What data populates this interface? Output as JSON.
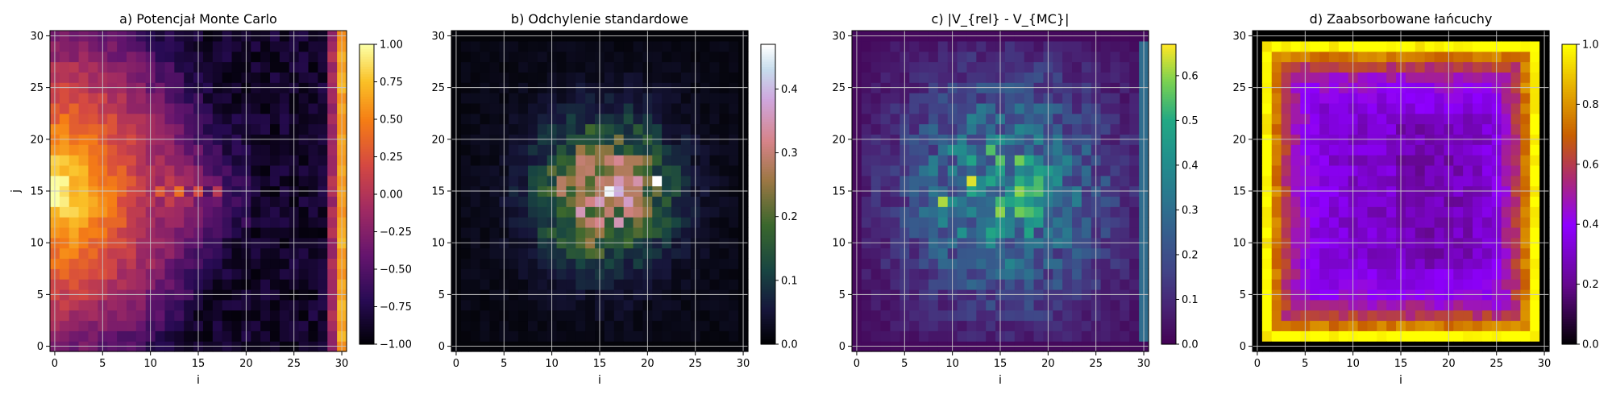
{
  "figure": {
    "width": 2000,
    "height": 500
  },
  "chart_data": [
    {
      "type": "heatmap",
      "title": "a) Potencjał Monte Carlo",
      "xlabel": "i",
      "ylabel": "j",
      "xlim": [
        -0.5,
        30.5
      ],
      "ylim": [
        -0.5,
        30.5
      ],
      "xticks": [
        0,
        5,
        10,
        15,
        20,
        25,
        30
      ],
      "yticks": [
        0,
        5,
        10,
        15,
        20,
        25,
        30
      ],
      "grid": true,
      "colormap": "inferno",
      "vmin": -1.0,
      "vmax": 1.0,
      "colorbar_ticks": [
        "1.00",
        "0.75",
        "0.50",
        "0.25",
        "0.00",
        "−0.25",
        "−0.50",
        "−0.75",
        "−1.00"
      ],
      "colorbar_tick_values": [
        1.0,
        0.75,
        0.5,
        0.25,
        0.0,
        -0.25,
        -0.5,
        -0.75,
        -1.0
      ],
      "description_values": {
        "left_edge_i0": 1.0,
        "right_edge_i30": 0.7,
        "center_row_j15_i0_to_30": [
          1.0,
          0.9,
          0.8,
          0.7,
          0.6,
          0.45,
          0.35,
          0.3,
          0.2,
          0.15,
          0.1,
          0.0,
          0.05,
          -0.3,
          0.1,
          -0.35,
          0.1,
          -0.3,
          0.1,
          -0.45,
          -0.3,
          -0.5,
          -0.6,
          -0.7,
          -0.65,
          -0.6,
          -0.6,
          -0.5,
          -0.4,
          -0.2,
          0.7
        ]
      }
    },
    {
      "type": "heatmap",
      "title": "b) Odchylenie standardowe",
      "xlabel": "i",
      "ylabel": "",
      "xlim": [
        -0.5,
        30.5
      ],
      "ylim": [
        -0.5,
        30.5
      ],
      "xticks": [
        0,
        5,
        10,
        15,
        20,
        25,
        30
      ],
      "yticks": [
        0,
        5,
        10,
        15,
        20,
        25,
        30
      ],
      "grid": true,
      "colormap": "cubehelix",
      "vmin": 0.0,
      "vmax": 0.47,
      "colorbar_ticks": [
        "0.4",
        "0.3",
        "0.2",
        "0.1",
        "0.0"
      ],
      "colorbar_tick_values": [
        0.4,
        0.3,
        0.2,
        0.1,
        0.0
      ],
      "description_values": {
        "peak": {
          "i": 16,
          "j": 15,
          "value": 0.46
        },
        "second_peak": {
          "i": 21,
          "j": 16,
          "value": 0.47
        },
        "edges": 0.02
      }
    },
    {
      "type": "heatmap",
      "title": "c) |V_{rel} - V_{MC}|",
      "xlabel": "i",
      "ylabel": "",
      "xlim": [
        -0.5,
        30.5
      ],
      "ylim": [
        -0.5,
        30.5
      ],
      "xticks": [
        0,
        5,
        10,
        15,
        20,
        25,
        30
      ],
      "yticks": [
        0,
        5,
        10,
        15,
        20,
        25,
        30
      ],
      "grid": true,
      "colormap": "viridis",
      "vmin": 0.0,
      "vmax": 0.67,
      "colorbar_ticks": [
        "0.6",
        "0.5",
        "0.4",
        "0.3",
        "0.2",
        "0.1",
        "0.0"
      ],
      "colorbar_tick_values": [
        0.6,
        0.5,
        0.4,
        0.3,
        0.2,
        0.1,
        0.0
      ],
      "description_values": {
        "right_column_i30": 0.3,
        "peaks": [
          {
            "i": 12,
            "j": 16,
            "value": 0.65
          },
          {
            "i": 9,
            "j": 14,
            "value": 0.62
          },
          {
            "i": 15,
            "j": 13,
            "value": 0.6
          },
          {
            "i": 17,
            "j": 18,
            "value": 0.58
          }
        ]
      }
    },
    {
      "type": "heatmap",
      "title": "d) Zaabsorbowane łańcuchy",
      "xlabel": "i",
      "ylabel": "",
      "xlim": [
        -0.5,
        30.5
      ],
      "ylim": [
        -0.5,
        30.5
      ],
      "xticks": [
        0,
        5,
        10,
        15,
        20,
        25,
        30
      ],
      "yticks": [
        0,
        5,
        10,
        15,
        20,
        25,
        30
      ],
      "grid": true,
      "colormap": "gnuplot",
      "vmin": 0.0,
      "vmax": 1.0,
      "colorbar_ticks": [
        "1.0",
        "0.8",
        "0.6",
        "0.4",
        "0.2",
        "0.0"
      ],
      "colorbar_tick_values": [
        1.0,
        0.8,
        0.6,
        0.4,
        0.2,
        0.0
      ],
      "description_values": {
        "outer_border": 0.0,
        "inner_edge": 1.0,
        "interior": 0.3
      }
    }
  ]
}
